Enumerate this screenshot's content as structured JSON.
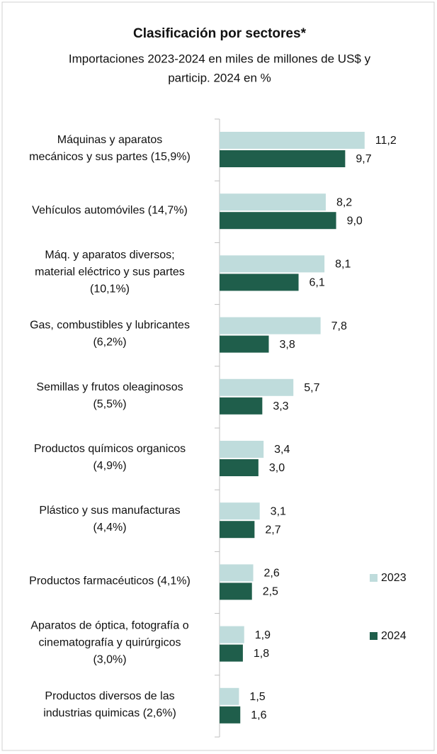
{
  "chart_data": {
    "type": "bar",
    "orientation": "horizontal",
    "title": "Clasificación por sectores*",
    "subtitle": "Importaciones 2023-2024 en miles de millones de US$ y\nparticip. 2024 en %",
    "categories": [
      "Máquinas y aparatos\nmecánicos y sus partes (15,9%)",
      "Vehículos automóviles (14,7%)",
      "Máq. y aparatos diversos;\nmaterial eléctrico y sus partes\n(10,1%)",
      "Gas, combustibles y lubricantes\n(6,2%)",
      "Semillas y frutos oleaginosos\n(5,5%)",
      "Productos químicos organicos\n(4,9%)",
      "Plástico y sus manufacturas\n(4,4%)",
      "Productos farmacéuticos (4,1%)",
      "Aparatos de óptica, fotografía o\ncinematografía y quirúrgicos\n(3,0%)",
      "Productos diversos de las\nindustrias quimicas (2,6%)"
    ],
    "series": [
      {
        "name": "2023",
        "color": "#bfdcdc",
        "values": [
          11.2,
          8.2,
          8.1,
          7.8,
          5.7,
          3.4,
          3.1,
          2.6,
          1.9,
          1.5
        ],
        "value_labels": [
          "11,2",
          "8,2",
          "8,1",
          "7,8",
          "5,7",
          "3,4",
          "3,1",
          "2,6",
          "1,9",
          "1,5"
        ]
      },
      {
        "name": "2024",
        "color": "#1f5e4b",
        "values": [
          9.7,
          9.0,
          6.1,
          3.8,
          3.3,
          3.0,
          2.7,
          2.5,
          1.8,
          1.6
        ],
        "value_labels": [
          "9,7",
          "9,0",
          "6,1",
          "3,8",
          "3,3",
          "3,0",
          "2,7",
          "2,5",
          "1,8",
          "1,6"
        ]
      }
    ],
    "xlim": [
      0,
      14
    ],
    "legend": "right"
  }
}
